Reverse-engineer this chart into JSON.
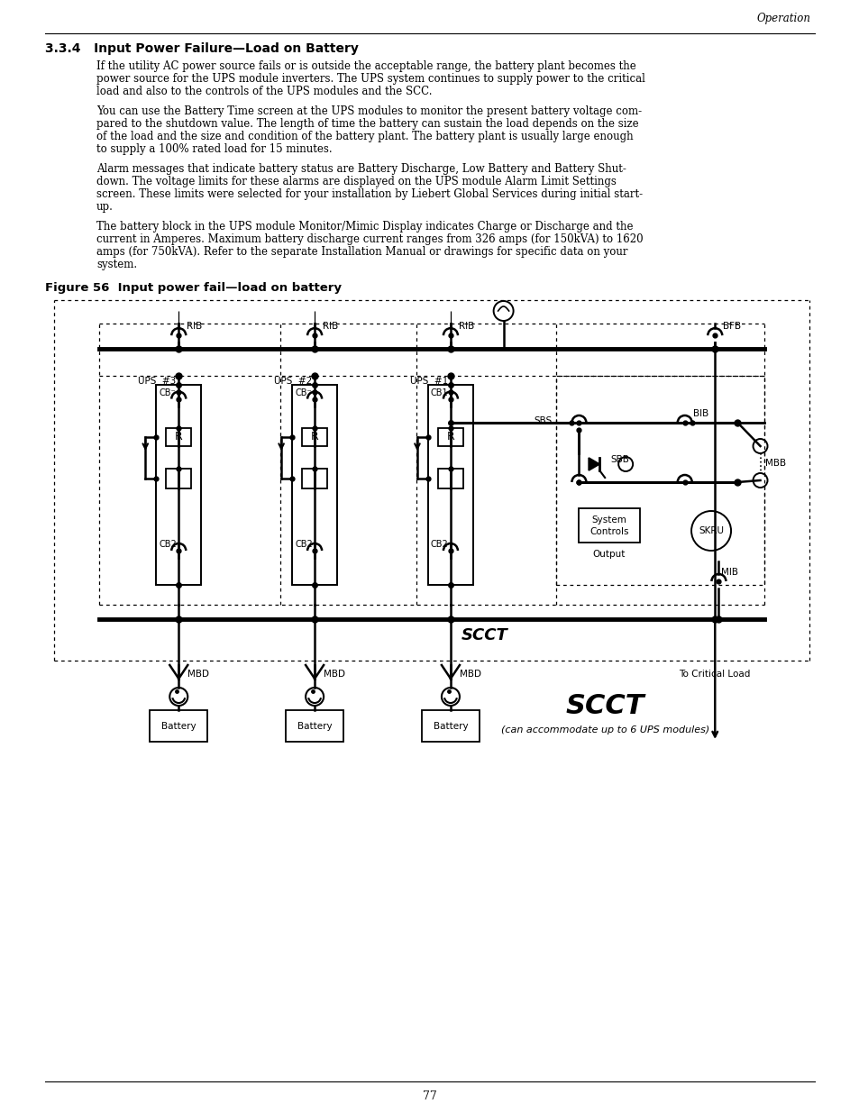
{
  "page_header_right": "Operation",
  "section_title": "3.3.4   Input Power Failure—Load on Battery",
  "paragraphs": [
    "If the utility AC power source fails or is outside the acceptable range, the battery plant becomes the\npower source for the UPS module inverters. The UPS system continues to supply power to the critical\nload and also to the controls of the UPS modules and the SCC.",
    "You can use the Battery Time screen at the UPS modules to monitor the present battery voltage com-\npared to the shutdown value. The length of time the battery can sustain the load depends on the size\nof the load and the size and condition of the battery plant. The battery plant is usually large enough\nto supply a 100% rated load for 15 minutes.",
    "Alarm messages that indicate battery status are Battery Discharge, Low Battery and Battery Shut-\ndown. The voltage limits for these alarms are displayed on the UPS module Alarm Limit Settings\nscreen. These limits were selected for your installation by Liebert Global Services during initial start-\nup.",
    "The battery block in the UPS module Monitor/Mimic Display indicates Charge or Discharge and the\ncurrent in Amperes. Maximum battery discharge current ranges from 326 amps (for 150kVA) to 1620\namps (for 750kVA). Refer to the separate Installation Manual or drawings for specific data on your\nsystem."
  ],
  "figure_label": "Figure 56  Input power fail—load on battery",
  "page_number": "77",
  "bg_color": "#ffffff",
  "text_color": "#000000"
}
